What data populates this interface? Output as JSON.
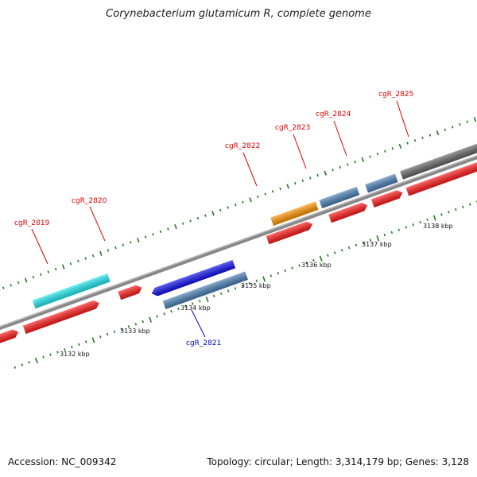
{
  "title": "Corynebacterium glutamicum R, complete genome",
  "footer": {
    "accession": "Accession: NC_009342",
    "info": "Topology: circular; Length: 3,314,179 bp; Genes: 3,128"
  },
  "ruler_labels": [
    "3132 kbp",
    "3133 kbp",
    "3134 kbp",
    "3135 kbp",
    "3136 kbp",
    "3137 kbp",
    "3138 kbp"
  ],
  "gene_labels": [
    {
      "text": "cgR_2819",
      "color": "#dd0000"
    },
    {
      "text": "cgR_2820",
      "color": "#dd0000"
    },
    {
      "text": "cgR_2821",
      "color": "#0000cc"
    },
    {
      "text": "cgR_2822",
      "color": "#dd0000"
    },
    {
      "text": "cgR_2823",
      "color": "#dd0000"
    },
    {
      "text": "cgR_2824",
      "color": "#dd0000"
    },
    {
      "text": "cgR_2825",
      "color": "#dd0000"
    }
  ],
  "colors": {
    "cds_red": "#ff1a1a",
    "cyan": "#22e8ee",
    "blue": "#1010ee",
    "steelblue": "#4a7fb5",
    "orange": "#ff9500",
    "grey": "#666666",
    "backbone": "#888888",
    "tick": "#227722"
  }
}
